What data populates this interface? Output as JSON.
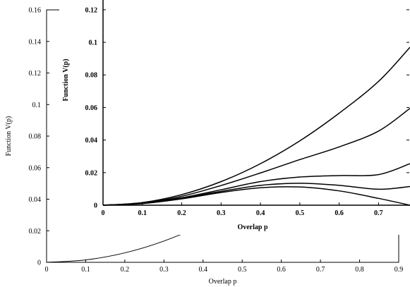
{
  "chart_data": [
    {
      "id": "main",
      "type": "line",
      "xlabel": "Overlap p",
      "ylabel": "Function V(p)",
      "xlim": [
        0,
        0.9
      ],
      "ylim": [
        0,
        0.16
      ],
      "xticks": [
        "0",
        "0.1",
        "0.2",
        "0.3",
        "0.4",
        "0.5",
        "0.6",
        "0.7",
        "0.8",
        "0.9"
      ],
      "yticks": [
        "0",
        "0.02",
        "0.04",
        "0.06",
        "0.08",
        "0.1",
        "0.12",
        "0.14",
        "0.16"
      ],
      "series": [
        {
          "x": [
            0,
            0.1,
            0.2,
            0.3,
            0.4,
            0.5,
            0.55,
            0.6,
            0.65,
            0.7,
            0.75,
            0.8,
            0.85,
            0.9
          ],
          "y": [
            0,
            0.0015,
            0.006,
            0.0135,
            0.024,
            0.0375,
            0.045,
            0.054,
            0.063,
            0.075,
            0.088,
            0.102,
            0.118,
            0.134
          ]
        }
      ]
    },
    {
      "id": "inset",
      "type": "line",
      "xlabel": "Overlap p",
      "ylabel": "Function V(p)",
      "xlim": [
        0,
        0.78
      ],
      "ylim": [
        0,
        0.126
      ],
      "xticks": [
        "0",
        "0.1",
        "0.2",
        "0.3",
        "0.4",
        "0.5",
        "0.6",
        "0.7"
      ],
      "yticks": [
        "0",
        "0.02",
        "0.04",
        "0.06",
        "0.08",
        "0.1",
        "0.12"
      ],
      "series": [
        {
          "x": [
            0,
            0.1,
            0.2,
            0.3,
            0.4,
            0.5,
            0.6,
            0.7,
            0.78
          ],
          "y": [
            0,
            0.0016,
            0.0065,
            0.0145,
            0.0255,
            0.0395,
            0.0565,
            0.076,
            0.097
          ]
        },
        {
          "x": [
            0,
            0.1,
            0.2,
            0.3,
            0.4,
            0.5,
            0.6,
            0.7,
            0.78
          ],
          "y": [
            0,
            0.0014,
            0.0055,
            0.0121,
            0.0198,
            0.028,
            0.0358,
            0.0455,
            0.0595
          ]
        },
        {
          "x": [
            0,
            0.1,
            0.2,
            0.3,
            0.4,
            0.5,
            0.6,
            0.7,
            0.78
          ],
          "y": [
            0,
            0.0012,
            0.0046,
            0.0095,
            0.0145,
            0.0173,
            0.0182,
            0.0188,
            0.0255
          ]
        },
        {
          "x": [
            0,
            0.1,
            0.2,
            0.3,
            0.4,
            0.5,
            0.6,
            0.7,
            0.78
          ],
          "y": [
            0,
            0.0011,
            0.0042,
            0.0085,
            0.0122,
            0.0135,
            0.0122,
            0.0098,
            0.0115
          ]
        },
        {
          "x": [
            0,
            0.1,
            0.2,
            0.3,
            0.4,
            0.5,
            0.6,
            0.7,
            0.78
          ],
          "y": [
            0,
            0.001,
            0.0039,
            0.0078,
            0.0107,
            0.0112,
            0.0088,
            0.0042,
            0.0
          ]
        }
      ]
    }
  ]
}
